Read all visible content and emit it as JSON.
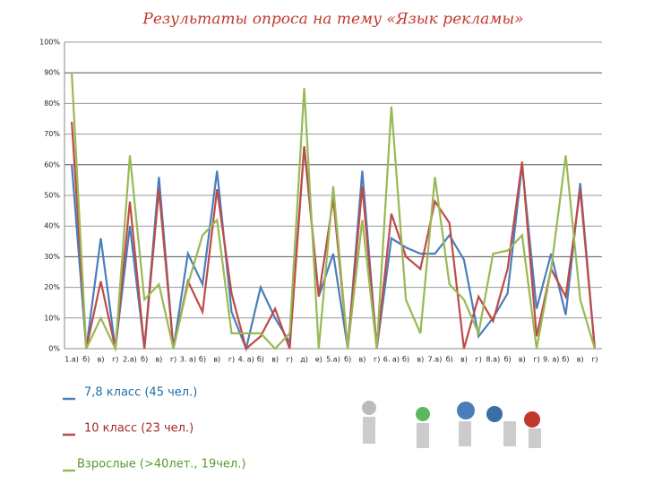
{
  "chart_data": {
    "type": "line",
    "title": "Результаты опроса на тему «Язык рекламы»",
    "categories": [
      "1.а)",
      "б)",
      "в)",
      "г)",
      "2.а)",
      "б)",
      "в)",
      "г)",
      "3. а)",
      "б)",
      "в)",
      "г)",
      "4. а)",
      "б)",
      "в)",
      "г)",
      "д)",
      "е)",
      "5.а)",
      "б)",
      "в)",
      "г)",
      "6. а)",
      "б)",
      "в)",
      "7.а)",
      "б)",
      "в)",
      "г)",
      "8.а)",
      "б)",
      "в)",
      "г)",
      "9. а)",
      "б)",
      "в)",
      "г)"
    ],
    "series": [
      {
        "name": "7,8 класс (45 чел.)",
        "color": "#4a7ebb",
        "values": [
          60,
          0,
          36,
          0,
          40,
          0,
          56,
          0,
          31,
          21,
          58,
          12,
          0,
          20,
          10,
          2,
          66,
          17,
          31,
          0,
          58,
          0,
          36,
          33,
          31,
          31,
          37,
          29,
          4,
          10,
          18,
          60,
          13,
          31,
          11,
          54,
          0
        ]
      },
      {
        "name": "10 класс (23 чел.)",
        "color": "#be4b48",
        "values": [
          74,
          0,
          22,
          0,
          48,
          0,
          52,
          0,
          22,
          12,
          52,
          18,
          0,
          4,
          13,
          0,
          66,
          17,
          49,
          0,
          53,
          0,
          44,
          30,
          26,
          48,
          41,
          0,
          17,
          9,
          26,
          61,
          4,
          26,
          17,
          52,
          0
        ]
      },
      {
        "name": "Взрослые (>40лет., 19чел.)",
        "color": "#98b954",
        "values": [
          90,
          0,
          10,
          0,
          63,
          16,
          21,
          0,
          21,
          37,
          42,
          5,
          5,
          5,
          0,
          5,
          85,
          0,
          53,
          0,
          42,
          0,
          79,
          16,
          5,
          56,
          21,
          16,
          5,
          31,
          32,
          37,
          0,
          26,
          63,
          16,
          0
        ]
      }
    ],
    "ylim": [
      0,
      100
    ],
    "yticks": [
      {
        "value": 0,
        "label": "0%"
      },
      {
        "value": 10,
        "label": "10%"
      },
      {
        "value": 20,
        "label": "20%"
      },
      {
        "value": 30,
        "label": "30%"
      },
      {
        "value": 40,
        "label": "40%"
      },
      {
        "value": 50,
        "label": "50%"
      },
      {
        "value": 60,
        "label": "60%"
      },
      {
        "value": 70,
        "label": "70%"
      },
      {
        "value": 80,
        "label": "80%"
      },
      {
        "value": 90,
        "label": "90%"
      },
      {
        "value": 100,
        "label": "100%"
      }
    ],
    "grid": true
  }
}
